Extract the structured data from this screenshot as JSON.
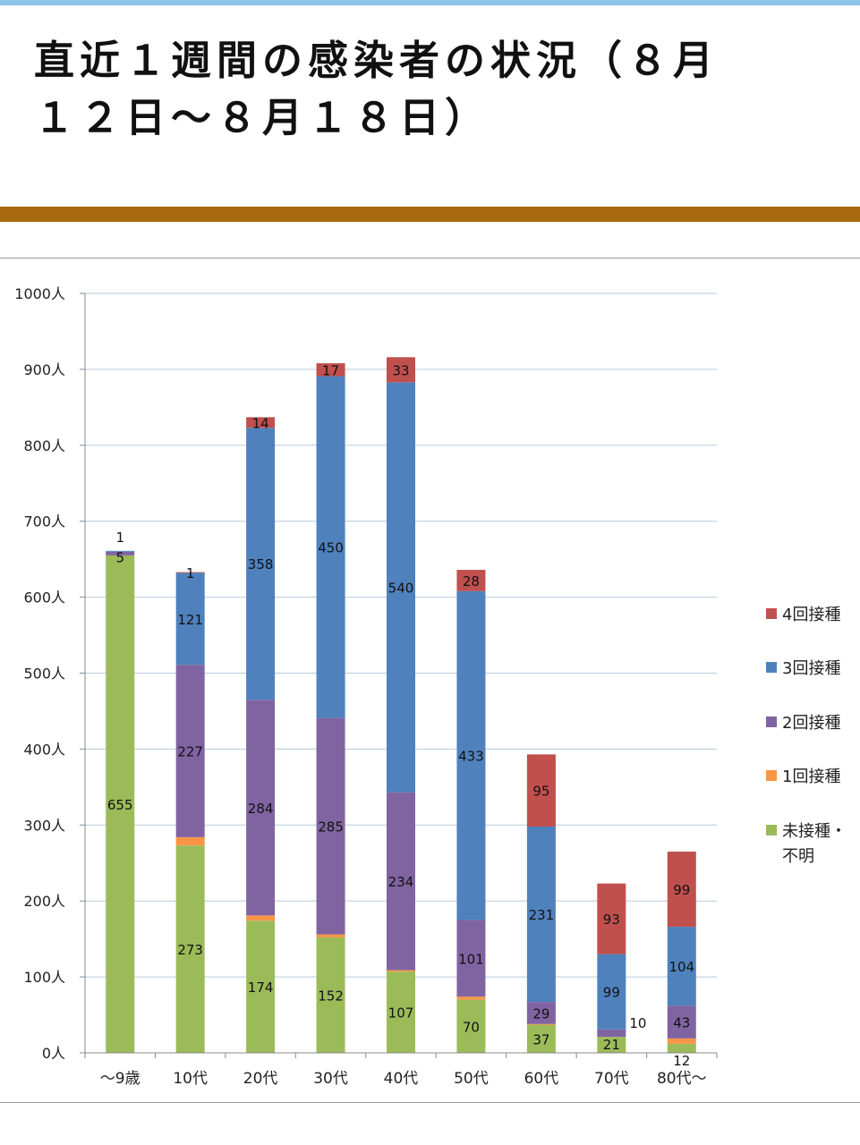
{
  "header": {
    "title_line1": "直近１週間の感染者の状況（８月",
    "title_line2": "１２日～８月１８日）"
  },
  "chart_data": {
    "type": "bar",
    "stacked": true,
    "categories": [
      "～9歳",
      "10代",
      "20代",
      "30代",
      "40代",
      "50代",
      "60代",
      "70代",
      "80代～"
    ],
    "y_ticks": [
      "0人",
      "100人",
      "200人",
      "300人",
      "400人",
      "500人",
      "600人",
      "700人",
      "800人",
      "900人",
      "1000人"
    ],
    "ylim": [
      0,
      1000
    ],
    "grid": true,
    "legend_position": "right",
    "series": [
      {
        "name": "未接種・不明",
        "color": "#9bbb59",
        "values": [
          655,
          273,
          174,
          152,
          107,
          70,
          37,
          21,
          12
        ]
      },
      {
        "name": "1回接種",
        "color": "#f79646",
        "values": [
          0,
          11,
          7,
          4,
          2,
          4,
          1,
          0,
          7
        ]
      },
      {
        "name": "2回接種",
        "color": "#8064a2",
        "values": [
          5,
          227,
          284,
          285,
          234,
          101,
          29,
          10,
          43
        ]
      },
      {
        "name": "3回接種",
        "color": "#4f81bd",
        "values": [
          1,
          121,
          358,
          450,
          540,
          433,
          231,
          99,
          104
        ]
      },
      {
        "name": "4回接種",
        "color": "#c0504d",
        "values": [
          0,
          1,
          14,
          17,
          33,
          28,
          95,
          93,
          99
        ]
      }
    ],
    "data_labels": [
      [
        "655",
        "",
        "5",
        "1",
        ""
      ],
      [
        "273",
        "",
        "227",
        "121",
        "1"
      ],
      [
        "174",
        "",
        "284",
        "358",
        "14"
      ],
      [
        "152",
        "",
        "285",
        "450",
        "17"
      ],
      [
        "107",
        "",
        "234",
        "540",
        "33"
      ],
      [
        "70",
        "",
        "101",
        "433",
        "28"
      ],
      [
        "37",
        "",
        "29",
        "231",
        "95"
      ],
      [
        "21",
        "",
        "10",
        "99",
        "93"
      ],
      [
        "12",
        "",
        "43",
        "104",
        "99"
      ]
    ],
    "legend": [
      {
        "label": "4回接種",
        "color": "#c0504d"
      },
      {
        "label": "3回接種",
        "color": "#4f81bd"
      },
      {
        "label": "2回接種",
        "color": "#8064a2"
      },
      {
        "label": "1回接種",
        "color": "#f79646"
      },
      {
        "label_line1": "未接種・",
        "label_line2": "不明",
        "color": "#9bbb59"
      }
    ]
  }
}
